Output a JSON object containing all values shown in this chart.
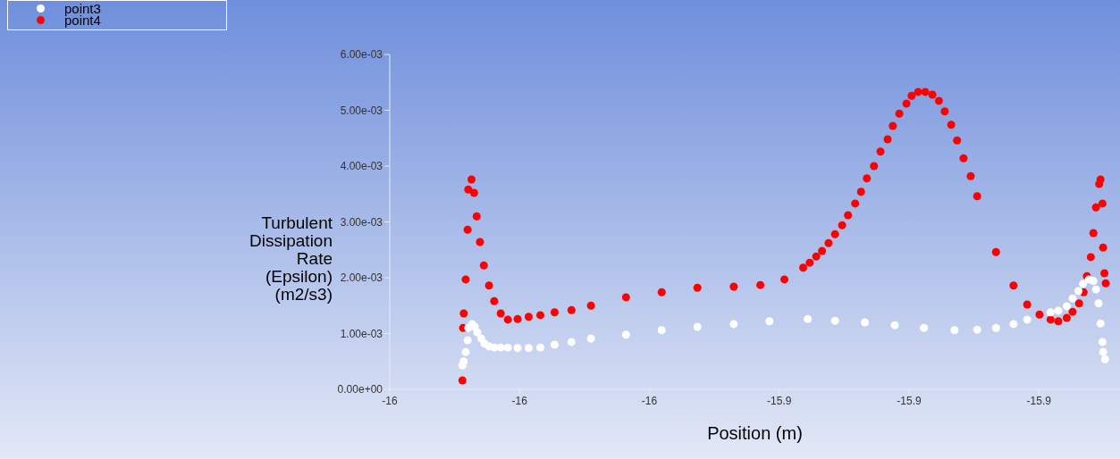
{
  "chart_data": {
    "type": "scatter",
    "xlabel": "Position (m)",
    "ylabel": "Turbulent Dissipation Rate (Epsilon) (m2/s3)",
    "xlim": [
      -16.0,
      -15.8875
    ],
    "xticks": [
      {
        "value": -16.0,
        "label": "-16"
      },
      {
        "value": -15.98,
        "label": "-16"
      },
      {
        "value": -15.96,
        "label": "-16"
      },
      {
        "value": -15.94,
        "label": "-15.9"
      },
      {
        "value": -15.92,
        "label": "-15.9"
      },
      {
        "value": -15.9,
        "label": "-15.9"
      }
    ],
    "ylim": [
      0,
      0.006
    ],
    "yticks": [
      {
        "value": 0,
        "label": "0.00e+00"
      },
      {
        "value": 0.001,
        "label": "1.00e-03"
      },
      {
        "value": 0.002,
        "label": "2.00e-03"
      },
      {
        "value": 0.003,
        "label": "3.00e-03"
      },
      {
        "value": 0.004,
        "label": "4.00e-03"
      },
      {
        "value": 0.005,
        "label": "5.00e-03"
      },
      {
        "value": 0.006,
        "label": "6.00e-03"
      }
    ],
    "grid": false,
    "legend": "top left",
    "marker": "circle",
    "series": [
      {
        "name": "point3",
        "color": "#ffffff",
        "x": [
          -15.9888,
          -15.9886,
          -15.9883,
          -15.988,
          -15.9879,
          -15.9873,
          -15.9869,
          -15.9865,
          -15.9859,
          -15.9854,
          -15.9847,
          -15.9839,
          -15.9829,
          -15.9818,
          -15.9803,
          -15.9786,
          -15.9768,
          -15.9746,
          -15.972,
          -15.969,
          -15.9636,
          -15.9581,
          -15.9526,
          -15.947,
          -15.9415,
          -15.9356,
          -15.9314,
          -15.9268,
          -15.9222,
          -15.9177,
          -15.913,
          -15.9095,
          -15.9066,
          -15.9039,
          -15.9018,
          -15.8982,
          -15.897,
          -15.8957,
          -15.8948,
          -15.8939,
          -15.8932,
          -15.8923,
          -15.8916,
          -15.8912,
          -15.8908,
          -15.8905,
          -15.8902,
          -15.8901,
          -15.8898
        ],
        "values": [
          0.00043,
          0.0005,
          0.00067,
          0.00088,
          0.0011,
          0.00117,
          0.00112,
          0.00102,
          0.00091,
          0.00082,
          0.00077,
          0.00075,
          0.00075,
          0.00075,
          0.00074,
          0.00074,
          0.00075,
          0.0008,
          0.00085,
          0.00091,
          0.00098,
          0.00106,
          0.00112,
          0.00117,
          0.00122,
          0.00126,
          0.00123,
          0.0012,
          0.00115,
          0.0011,
          0.00106,
          0.00107,
          0.0011,
          0.00117,
          0.00125,
          0.00138,
          0.00141,
          0.00149,
          0.00163,
          0.00176,
          0.00189,
          0.00197,
          0.00194,
          0.00179,
          0.00154,
          0.00118,
          0.00085,
          0.00067,
          0.00054
        ]
      },
      {
        "name": "point4",
        "color": "#ff0000",
        "x": [
          -15.9888,
          -15.9887,
          -15.9886,
          -15.9883,
          -15.988,
          -15.9879,
          -15.9874,
          -15.987,
          -15.9866,
          -15.9861,
          -15.9855,
          -15.9847,
          -15.9839,
          -15.9829,
          -15.9818,
          -15.9803,
          -15.9786,
          -15.9768,
          -15.9746,
          -15.972,
          -15.969,
          -15.9636,
          -15.9581,
          -15.9526,
          -15.947,
          -15.9429,
          -15.9392,
          -15.9363,
          -15.9353,
          -15.9343,
          -15.9334,
          -15.9324,
          -15.9314,
          -15.9303,
          -15.9294,
          -15.9283,
          -15.9274,
          -15.9265,
          -15.9254,
          -15.9244,
          -15.9233,
          -15.9225,
          -15.9215,
          -15.9204,
          -15.9196,
          -15.9186,
          -15.9175,
          -15.9164,
          -15.9154,
          -15.9145,
          -15.9135,
          -15.9126,
          -15.9116,
          -15.9105,
          -15.9095,
          -15.9066,
          -15.9039,
          -15.9018,
          -15.8999,
          -15.8982,
          -15.897,
          -15.8957,
          -15.8948,
          -15.8938,
          -15.8931,
          -15.8926,
          -15.892,
          -15.8916,
          -15.8912,
          -15.8907,
          -15.8905,
          -15.8902,
          -15.8901,
          -15.8899,
          -15.8897
        ],
        "values": [
          0.00016,
          0.0011,
          0.00136,
          0.00197,
          0.00286,
          0.00358,
          0.00376,
          0.00352,
          0.0031,
          0.00264,
          0.00222,
          0.00186,
          0.00158,
          0.00136,
          0.00125,
          0.00126,
          0.0013,
          0.00133,
          0.00138,
          0.00142,
          0.0015,
          0.00165,
          0.00174,
          0.00182,
          0.00184,
          0.00187,
          0.00197,
          0.00218,
          0.00227,
          0.00238,
          0.00248,
          0.00262,
          0.00278,
          0.00294,
          0.00312,
          0.00333,
          0.00354,
          0.00378,
          0.004,
          0.00426,
          0.00448,
          0.00472,
          0.00494,
          0.00512,
          0.00526,
          0.00533,
          0.00533,
          0.00528,
          0.00517,
          0.00498,
          0.00474,
          0.00446,
          0.00414,
          0.00382,
          0.00346,
          0.00246,
          0.00186,
          0.00152,
          0.00134,
          0.00125,
          0.00122,
          0.00128,
          0.00139,
          0.00154,
          0.00174,
          0.00203,
          0.00237,
          0.0028,
          0.00326,
          0.00368,
          0.00376,
          0.00333,
          0.00254,
          0.00208,
          0.0019
        ]
      }
    ]
  }
}
